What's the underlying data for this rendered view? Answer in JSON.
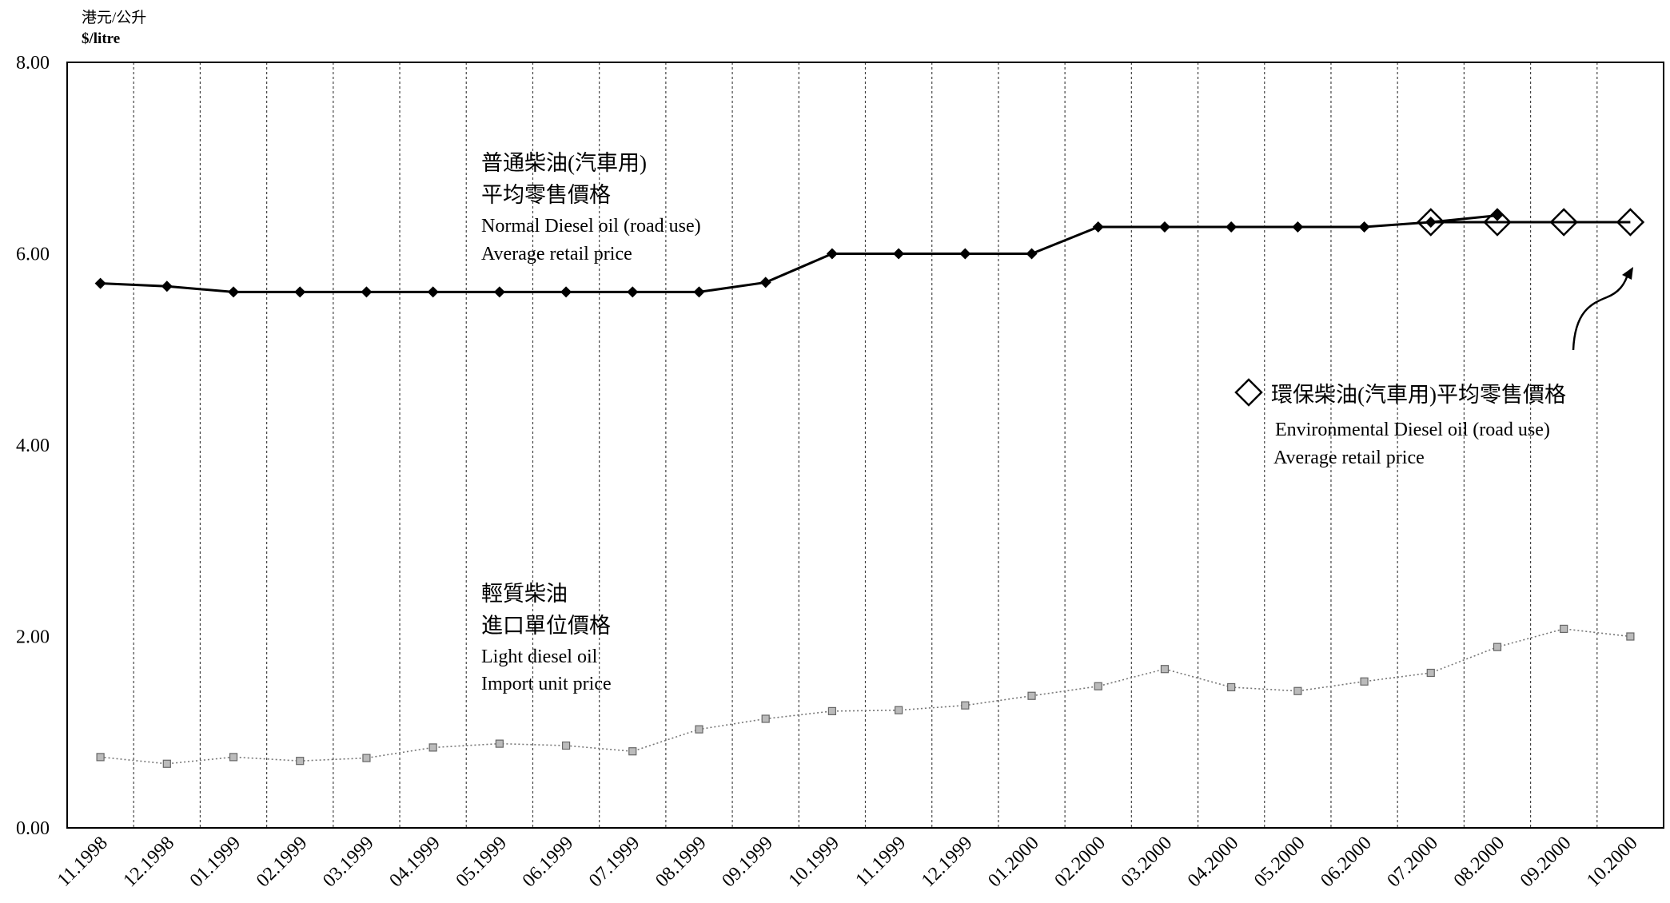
{
  "chart_data": {
    "type": "line",
    "unit_label": {
      "zh": "港元/公升",
      "en": "$/litre"
    },
    "y_ticks": [
      "8.00",
      "6.00",
      "4.00",
      "2.00",
      "0.00"
    ],
    "ylim": [
      0,
      8
    ],
    "categories": [
      "11.1998",
      "12.1998",
      "01.1999",
      "02.1999",
      "03.1999",
      "04.1999",
      "05.1999",
      "06.1999",
      "07.1999",
      "08.1999",
      "09.1999",
      "10.1999",
      "11.1999",
      "12.1999",
      "01.2000",
      "02.2000",
      "03.2000",
      "04.2000",
      "05.2000",
      "06.2000",
      "07.2000",
      "08.2000",
      "09.2000",
      "10.2000"
    ],
    "grid": "vertical dashed lines between months",
    "series": [
      {
        "key": "normal",
        "color": "#000000",
        "marker": "filled-diamond",
        "values": [
          5.69,
          5.66,
          5.6,
          5.6,
          5.6,
          5.6,
          5.6,
          5.6,
          5.6,
          5.6,
          5.7,
          6.0,
          6.0,
          6.0,
          6.0,
          6.28,
          6.28,
          6.28,
          6.28,
          6.28,
          6.33,
          6.4,
          null,
          null
        ]
      },
      {
        "key": "environmental",
        "color": "#000000",
        "marker": "open-diamond",
        "values": [
          null,
          null,
          null,
          null,
          null,
          null,
          null,
          null,
          null,
          null,
          null,
          null,
          null,
          null,
          null,
          null,
          null,
          null,
          null,
          null,
          6.33,
          6.33,
          6.33,
          6.33
        ]
      },
      {
        "key": "light",
        "color": "#777777",
        "marker": "small-dotted-square",
        "values": [
          0.74,
          0.67,
          0.74,
          0.7,
          0.73,
          0.84,
          0.88,
          0.86,
          0.8,
          1.03,
          1.14,
          1.22,
          1.23,
          1.28,
          1.38,
          1.48,
          1.66,
          1.47,
          1.43,
          1.53,
          1.62,
          1.89,
          2.08,
          2.0
        ]
      }
    ],
    "annotations": {
      "normal": {
        "zh1": "普通柴油(汽車用)",
        "zh2": "平均零售價格",
        "en1": "Normal Diesel oil (road use)",
        "en2": "Average retail price"
      },
      "light": {
        "zh1": "輕質柴油",
        "zh2": "進口單位價格",
        "en1": "Light diesel oil",
        "en2": "Import unit price"
      },
      "environmental": {
        "zh": "環保柴油(汽車用)平均零售價格",
        "en1": "Environmental Diesel oil (road use)",
        "en2": "Average retail price"
      }
    }
  }
}
